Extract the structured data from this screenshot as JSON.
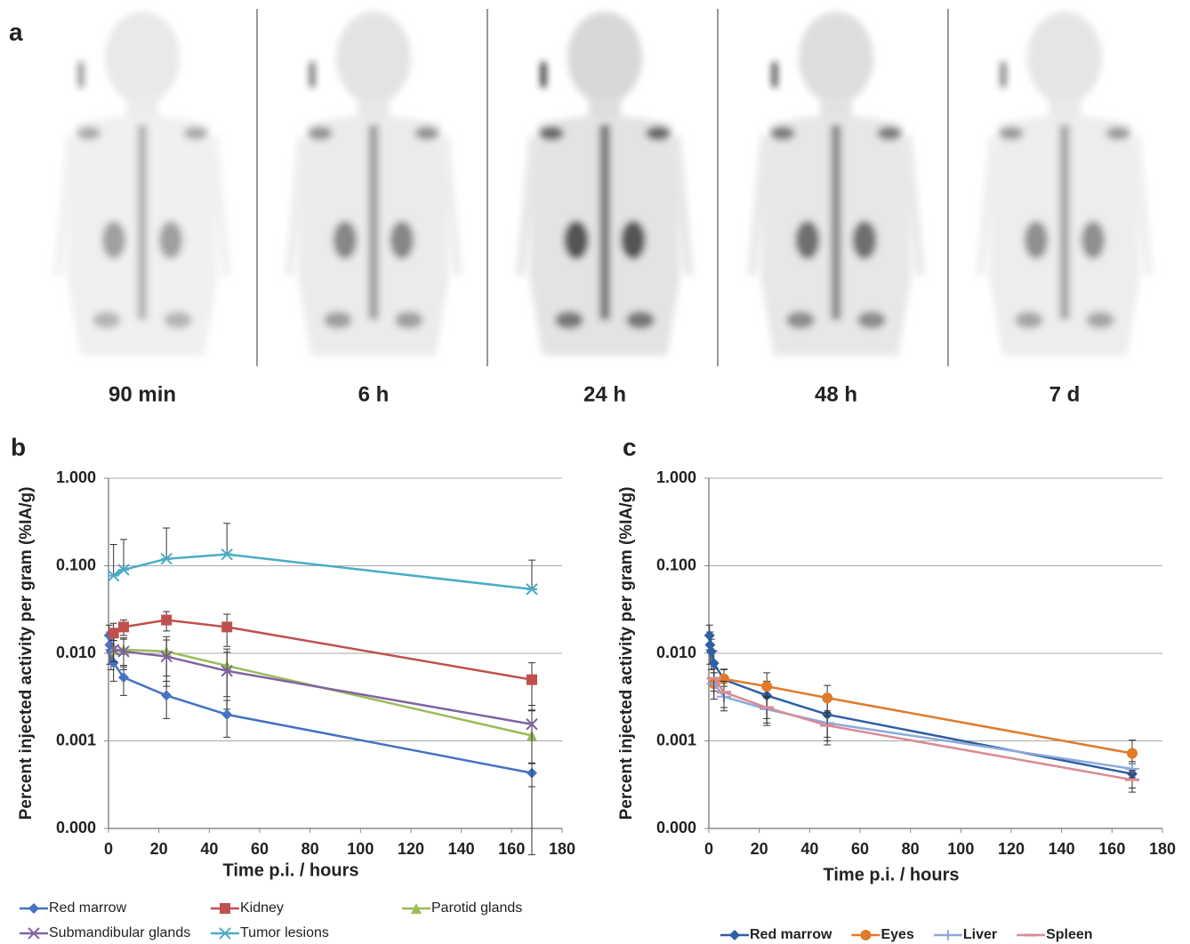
{
  "images": {
    "panel": "a",
    "labels": [
      "90 min",
      "6 h",
      "24 h",
      "48 h",
      "7 d"
    ]
  },
  "chart_data": [
    {
      "type": "line",
      "panel": "b",
      "log": true,
      "grid": true,
      "y_label": "Percent injected activity per gram  (%IA/g)",
      "x_label": "Time p.i. / hours",
      "xlim": [
        0,
        180
      ],
      "xticks": [
        0,
        20,
        40,
        60,
        80,
        100,
        120,
        140,
        160,
        180
      ],
      "ylim": [
        0.0001,
        1
      ],
      "yticks": [
        {
          "value": 0.0001,
          "label": "0.000"
        },
        {
          "value": 0.001,
          "label": "0.001"
        },
        {
          "value": 0.01,
          "label": "0.010"
        },
        {
          "value": 0.1,
          "label": "0.100"
        },
        {
          "value": 1,
          "label": "1.000"
        }
      ],
      "series": [
        {
          "name": "Red marrow",
          "color": "#4472c4",
          "marker": "diamond",
          "x": [
            0.25,
            0.5,
            1,
            2,
            6,
            23,
            47,
            168
          ],
          "values": [
            0.016,
            0.0125,
            0.0105,
            0.0078,
            0.0053,
            0.0033,
            0.002,
            0.00043
          ],
          "errors": [
            0.005,
            0.005,
            0.004,
            0.003,
            0.002,
            0.0015,
            0.0009,
            0.00013
          ]
        },
        {
          "name": "Kidney",
          "color": "#c0504d",
          "marker": "square",
          "x": [
            2,
            6,
            23,
            47,
            168
          ],
          "values": [
            0.017,
            0.02,
            0.024,
            0.02,
            0.005
          ],
          "errors": [
            0.005,
            0.004,
            0.006,
            0.008,
            0.0028
          ]
        },
        {
          "name": "Parotid glands",
          "color": "#9bbb59",
          "marker": "triangle",
          "x": [
            2,
            6,
            23,
            47,
            168
          ],
          "values": [
            0.011,
            0.011,
            0.0105,
            0.0072,
            0.00115
          ],
          "errors": [
            0.003,
            0.004,
            0.005,
            0.004,
            0.0011
          ]
        },
        {
          "name": "Submandibular glands",
          "color": "#8064a2",
          "marker": "cross",
          "x": [
            2,
            6,
            23,
            47,
            168
          ],
          "values": [
            0.011,
            0.0105,
            0.0092,
            0.0063,
            0.00155
          ],
          "errors": [
            0.003,
            0.004,
            0.005,
            0.004,
            0.001
          ]
        },
        {
          "name": "Tumor lesions",
          "color": "#4bacc6",
          "marker": "star",
          "x": [
            2,
            6,
            23,
            47,
            168
          ],
          "values": [
            0.077,
            0.09,
            0.12,
            0.135,
            0.054
          ],
          "errors": [
            0.098,
            0.11,
            0.15,
            0.17,
            0.062
          ]
        }
      ]
    },
    {
      "type": "line",
      "panel": "c",
      "log": true,
      "grid": true,
      "y_label": "Percent injected activity per gram  (%IA/g)",
      "x_label": "Time p.i. / hours",
      "xlim": [
        0,
        180
      ],
      "xticks": [
        0,
        20,
        40,
        60,
        80,
        100,
        120,
        140,
        160,
        180
      ],
      "ylim": [
        0.0001,
        1
      ],
      "yticks": [
        {
          "value": 0.0001,
          "label": "0.000"
        },
        {
          "value": 0.001,
          "label": "0.001"
        },
        {
          "value": 0.01,
          "label": "0.010"
        },
        {
          "value": 0.1,
          "label": "0.100"
        },
        {
          "value": 1,
          "label": "1.000"
        }
      ],
      "series": [
        {
          "name": "Red marrow",
          "color": "#2e5fa3",
          "marker": "diamond",
          "x": [
            0.25,
            0.5,
            1,
            2,
            6,
            23,
            47,
            168
          ],
          "values": [
            0.016,
            0.0125,
            0.0105,
            0.0077,
            0.005,
            0.0033,
            0.002,
            0.00042
          ],
          "errors": [
            0.005,
            0.005,
            0.004,
            0.003,
            0.0015,
            0.0015,
            0.0009,
            0.00013
          ]
        },
        {
          "name": "Eyes",
          "color": "#e07b2b",
          "marker": "circle",
          "x": [
            2,
            6,
            23,
            47,
            168
          ],
          "values": [
            0.0045,
            0.0051,
            0.0042,
            0.0031,
            0.00072
          ],
          "errors": [
            0.0015,
            0.0015,
            0.0018,
            0.0012,
            0.0003
          ]
        },
        {
          "name": "Liver",
          "color": "#8eaadb",
          "marker": "plus",
          "x": [
            2,
            6,
            23,
            47,
            168
          ],
          "values": [
            0.0045,
            0.0032,
            0.0023,
            0.0016,
            0.00048
          ],
          "errors": [
            0.0015,
            0.001,
            0.0008,
            0.0006,
            0.0001
          ]
        },
        {
          "name": "Spleen",
          "color": "#d98b94",
          "marker": "dash",
          "x": [
            2,
            6,
            23,
            47,
            168
          ],
          "values": [
            0.0052,
            0.0036,
            0.0024,
            0.0015,
            0.00036
          ],
          "errors": [
            0.0015,
            0.0012,
            0.0008,
            0.0006,
            0.0001
          ]
        }
      ]
    }
  ]
}
